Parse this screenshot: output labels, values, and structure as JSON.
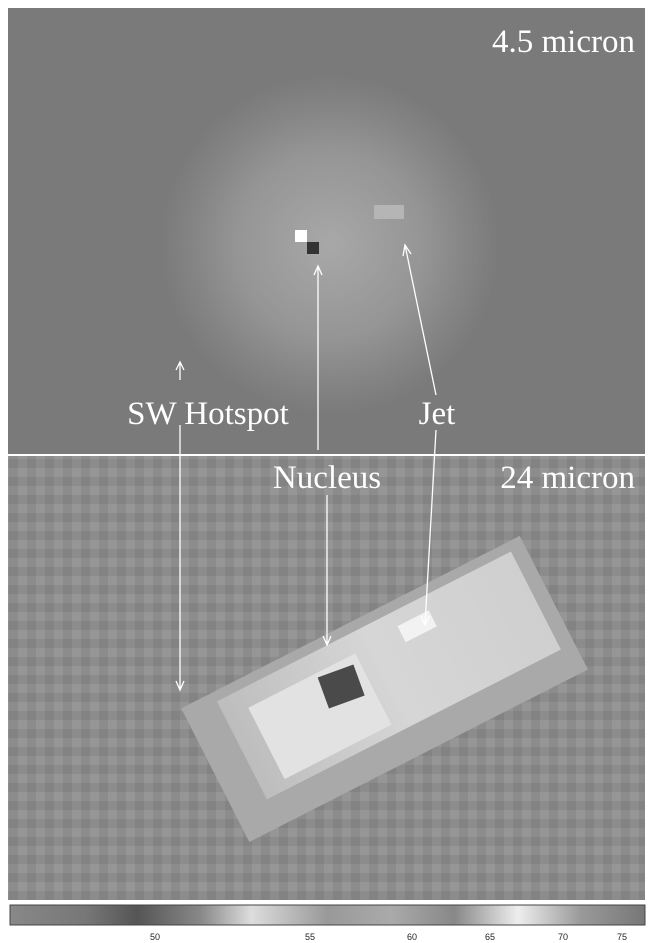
{
  "panels": {
    "top": {
      "label": "4.5 micron"
    },
    "bottom": {
      "label": "24 micron"
    }
  },
  "annotations": {
    "hotspot": "SW Hotspot",
    "jet": "Jet",
    "nucleus": "Nucleus"
  },
  "colorbar": {
    "ticks": [
      50,
      55,
      60,
      65,
      70,
      75
    ]
  }
}
